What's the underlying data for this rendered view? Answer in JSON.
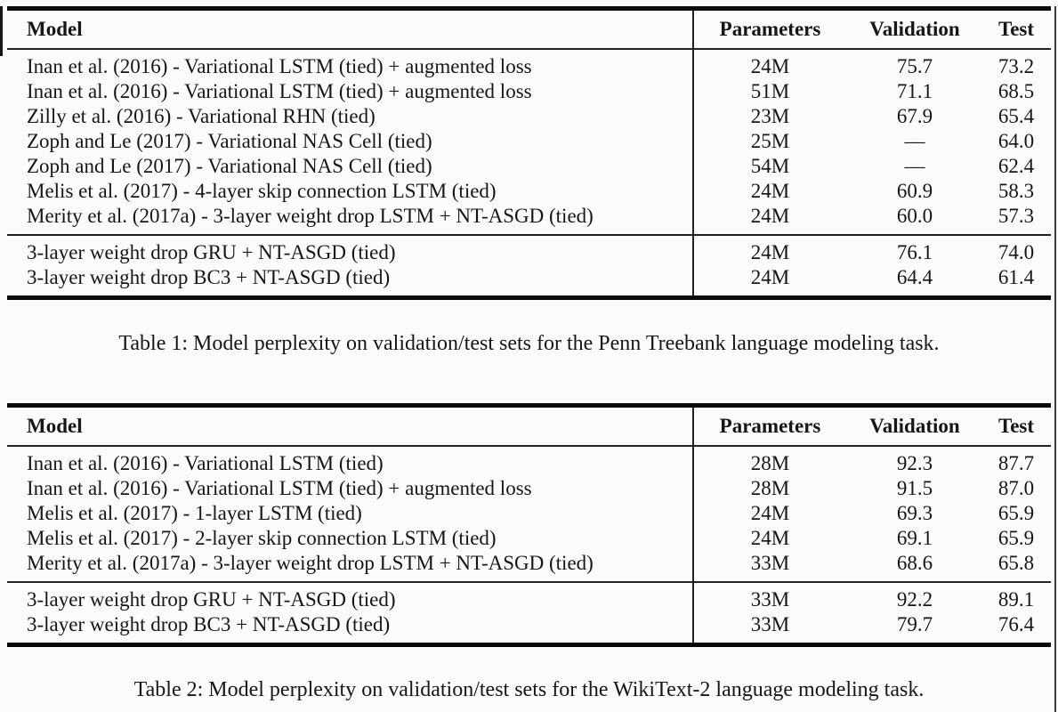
{
  "page": {
    "background": "#fbfbfa",
    "text_color": "#161616",
    "rule_color": "#0a0a0a"
  },
  "tables": [
    {
      "columns": [
        "Model",
        "Parameters",
        "Validation",
        "Test"
      ],
      "groups": [
        {
          "rows": [
            {
              "model": "Inan et al. (2016) - Variational LSTM (tied) + augmented loss",
              "parameters": "24M",
              "validation": "75.7",
              "test": "73.2"
            },
            {
              "model": "Inan et al. (2016) - Variational LSTM (tied) + augmented loss",
              "parameters": "51M",
              "validation": "71.1",
              "test": "68.5"
            },
            {
              "model": "Zilly et al. (2016) - Variational RHN (tied)",
              "parameters": "23M",
              "validation": "67.9",
              "test": "65.4"
            },
            {
              "model": "Zoph and Le (2017) - Variational NAS Cell (tied)",
              "parameters": "25M",
              "validation": "—",
              "test": "64.0"
            },
            {
              "model": "Zoph and Le (2017) - Variational NAS Cell (tied)",
              "parameters": "54M",
              "validation": "—",
              "test": "62.4"
            },
            {
              "model": "Melis et al. (2017) - 4-layer skip connection LSTM (tied)",
              "parameters": "24M",
              "validation": "60.9",
              "test": "58.3"
            },
            {
              "model": "Merity et al. (2017a) - 3-layer weight drop LSTM + NT-ASGD (tied)",
              "parameters": "24M",
              "validation": "60.0",
              "test": "57.3"
            }
          ]
        },
        {
          "rows": [
            {
              "model": "3-layer weight drop GRU + NT-ASGD (tied)",
              "parameters": "24M",
              "validation": "76.1",
              "test": "74.0"
            },
            {
              "model": "3-layer weight drop BC3 + NT-ASGD (tied)",
              "parameters": "24M",
              "validation": "64.4",
              "test": "61.4"
            }
          ]
        }
      ],
      "caption": "Table 1: Model perplexity on validation/test sets for the Penn Treebank language modeling task."
    },
    {
      "columns": [
        "Model",
        "Parameters",
        "Validation",
        "Test"
      ],
      "groups": [
        {
          "rows": [
            {
              "model": "Inan et al. (2016) - Variational LSTM (tied)",
              "parameters": "28M",
              "validation": "92.3",
              "test": "87.7"
            },
            {
              "model": "Inan et al. (2016) - Variational LSTM (tied) + augmented loss",
              "parameters": "28M",
              "validation": "91.5",
              "test": "87.0"
            },
            {
              "model": "Melis et al. (2017) - 1-layer LSTM (tied)",
              "parameters": "24M",
              "validation": "69.3",
              "test": "65.9"
            },
            {
              "model": "Melis et al. (2017) - 2-layer skip connection LSTM (tied)",
              "parameters": "24M",
              "validation": "69.1",
              "test": "65.9"
            },
            {
              "model": "Merity et al. (2017a) - 3-layer weight drop LSTM + NT-ASGD (tied)",
              "parameters": "33M",
              "validation": "68.6",
              "test": "65.8"
            }
          ]
        },
        {
          "rows": [
            {
              "model": "3-layer weight drop GRU + NT-ASGD (tied)",
              "parameters": "33M",
              "validation": "92.2",
              "test": "89.1"
            },
            {
              "model": "3-layer weight drop BC3 + NT-ASGD (tied)",
              "parameters": "33M",
              "validation": "79.7",
              "test": "76.4"
            }
          ]
        }
      ],
      "caption": "Table 2: Model perplexity on validation/test sets for the WikiText-2 language modeling task."
    }
  ]
}
